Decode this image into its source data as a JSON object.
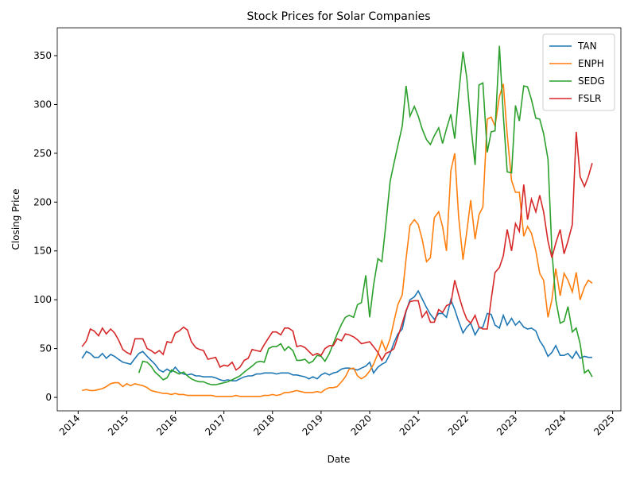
{
  "chart_data": {
    "type": "line",
    "title": "Stock Prices for Solar Companies",
    "x_label": "Date",
    "y_label": "Closing Price",
    "x": [
      2014.08,
      2014.17,
      2014.25,
      2014.33,
      2014.42,
      2014.5,
      2014.58,
      2014.67,
      2014.75,
      2014.83,
      2014.92,
      2015.0,
      2015.08,
      2015.17,
      2015.25,
      2015.33,
      2015.42,
      2015.5,
      2015.58,
      2015.67,
      2015.75,
      2015.83,
      2015.92,
      2016.0,
      2016.08,
      2016.17,
      2016.25,
      2016.33,
      2016.42,
      2016.5,
      2016.58,
      2016.67,
      2016.75,
      2016.83,
      2016.92,
      2017.0,
      2017.08,
      2017.17,
      2017.25,
      2017.33,
      2017.42,
      2017.5,
      2017.58,
      2017.67,
      2017.75,
      2017.83,
      2017.92,
      2018.0,
      2018.08,
      2018.17,
      2018.25,
      2018.33,
      2018.42,
      2018.5,
      2018.58,
      2018.67,
      2018.75,
      2018.83,
      2018.92,
      2019.0,
      2019.08,
      2019.17,
      2019.25,
      2019.33,
      2019.42,
      2019.5,
      2019.58,
      2019.67,
      2019.75,
      2019.83,
      2019.92,
      2020.0,
      2020.08,
      2020.17,
      2020.25,
      2020.33,
      2020.42,
      2020.5,
      2020.58,
      2020.67,
      2020.75,
      2020.83,
      2020.92,
      2021.0,
      2021.08,
      2021.17,
      2021.25,
      2021.33,
      2021.42,
      2021.5,
      2021.58,
      2021.67,
      2021.75,
      2021.83,
      2021.92,
      2022.0,
      2022.08,
      2022.17,
      2022.25,
      2022.33,
      2022.42,
      2022.5,
      2022.58,
      2022.67,
      2022.75,
      2022.83,
      2022.92,
      2023.0,
      2023.08,
      2023.17,
      2023.25,
      2023.33,
      2023.42,
      2023.5,
      2023.58,
      2023.67,
      2023.75,
      2023.83,
      2023.92,
      2024.0,
      2024.08,
      2024.17,
      2024.25,
      2024.33,
      2024.42,
      2024.5,
      2024.58
    ],
    "series": [
      {
        "name": "TAN",
        "color": "#1f77b4",
        "values": [
          40,
          47,
          45,
          41,
          41,
          45,
          40,
          44,
          42,
          39,
          36,
          35,
          34,
          40,
          45,
          47,
          42,
          38,
          34,
          28,
          26,
          29,
          26,
          31,
          26,
          24,
          23,
          24,
          22,
          22,
          21,
          21,
          21,
          20,
          18,
          17,
          18,
          17,
          17,
          19,
          21,
          22,
          22,
          24,
          24,
          25,
          25,
          25,
          24,
          25,
          25,
          25,
          23,
          23,
          22,
          21,
          19,
          21,
          19,
          23,
          25,
          23,
          25,
          26,
          29,
          30,
          30,
          29,
          28,
          30,
          32,
          36,
          25,
          31,
          34,
          36,
          45,
          56,
          65,
          70,
          88,
          100,
          103,
          109,
          101,
          92,
          85,
          80,
          86,
          86,
          82,
          100,
          90,
          78,
          66,
          72,
          76,
          64,
          71,
          72,
          86,
          85,
          74,
          71,
          84,
          74,
          81,
          74,
          78,
          72,
          70,
          71,
          68,
          58,
          52,
          42,
          46,
          53,
          43,
          43,
          45,
          40,
          47,
          40,
          42,
          41,
          41
        ]
      },
      {
        "name": "ENPH",
        "color": "#ff7f0e",
        "values": [
          7,
          8,
          7,
          7,
          8,
          9,
          11,
          14,
          15,
          15,
          11,
          14,
          12,
          14,
          13,
          12,
          10,
          7,
          6,
          5,
          4,
          4,
          3,
          4,
          3,
          3,
          2,
          2,
          2,
          2,
          2,
          2,
          2,
          1,
          1,
          1,
          1,
          1,
          2,
          1,
          1,
          1,
          1,
          1,
          1,
          2,
          2,
          3,
          2,
          3,
          5,
          5,
          6,
          7,
          6,
          5,
          5,
          5,
          6,
          5,
          8,
          10,
          10,
          11,
          16,
          21,
          29,
          30,
          22,
          19,
          22,
          27,
          34,
          45,
          58,
          48,
          60,
          78,
          95,
          105,
          142,
          176,
          182,
          177,
          162,
          139,
          143,
          184,
          190,
          175,
          150,
          232,
          250,
          185,
          141,
          170,
          202,
          162,
          187,
          195,
          285,
          287,
          278,
          308,
          321,
          269,
          222,
          210,
          210,
          165,
          175,
          168,
          150,
          127,
          120,
          82,
          100,
          132,
          104,
          127,
          120,
          108,
          128,
          100,
          113,
          120,
          117
        ]
      },
      {
        "name": "SEDG",
        "color": "#2ca02c",
        "values": [
          null,
          null,
          null,
          null,
          null,
          null,
          null,
          null,
          null,
          null,
          null,
          null,
          null,
          null,
          25,
          37,
          36,
          32,
          26,
          22,
          18,
          20,
          28,
          26,
          24,
          26,
          22,
          19,
          17,
          16,
          16,
          14,
          13,
          13,
          14,
          15,
          16,
          18,
          20,
          22,
          26,
          29,
          32,
          36,
          37,
          36,
          50,
          52,
          52,
          55,
          48,
          52,
          48,
          38,
          38,
          39,
          35,
          37,
          43,
          42,
          37,
          45,
          55,
          65,
          75,
          82,
          84,
          82,
          95,
          97,
          125,
          82,
          115,
          142,
          139,
          176,
          221,
          240,
          258,
          278,
          319,
          288,
          298,
          288,
          275,
          264,
          259,
          268,
          276,
          260,
          275,
          290,
          265,
          310,
          354,
          327,
          280,
          238,
          320,
          322,
          251,
          272,
          273,
          360,
          289,
          231,
          230,
          299,
          283,
          319,
          318,
          305,
          286,
          285,
          270,
          244,
          150,
          100,
          76,
          78,
          93,
          67,
          71,
          55,
          25,
          28,
          21
        ]
      },
      {
        "name": "FSLR",
        "color": "#d62728",
        "values": [
          52,
          58,
          70,
          68,
          63,
          71,
          65,
          70,
          66,
          59,
          49,
          46,
          44,
          60,
          60,
          60,
          50,
          48,
          45,
          48,
          44,
          57,
          56,
          66,
          68,
          72,
          69,
          57,
          51,
          49,
          48,
          39,
          40,
          41,
          31,
          33,
          32,
          36,
          28,
          31,
          38,
          40,
          49,
          48,
          47,
          54,
          61,
          67,
          67,
          64,
          71,
          71,
          68,
          52,
          53,
          51,
          47,
          43,
          45,
          43,
          50,
          53,
          53,
          60,
          58,
          65,
          64,
          62,
          59,
          55,
          56,
          57,
          52,
          46,
          38,
          45,
          47,
          50,
          62,
          76,
          89,
          98,
          99,
          99,
          82,
          88,
          77,
          77,
          90,
          87,
          94,
          96,
          120,
          105,
          90,
          80,
          76,
          84,
          72,
          70,
          70,
          100,
          128,
          133,
          145,
          172,
          150,
          178,
          170,
          218,
          182,
          203,
          190,
          207,
          190,
          160,
          143,
          158,
          172,
          147,
          160,
          177,
          272,
          226,
          216,
          226,
          240
        ]
      }
    ],
    "xlim": [
      2013.57,
      2025.17
    ],
    "xticks": [
      2014,
      2015,
      2016,
      2017,
      2018,
      2019,
      2020,
      2021,
      2022,
      2023,
      2024,
      2025
    ],
    "ylim": [
      -13.8,
      378.5
    ],
    "yticks": [
      0,
      50,
      100,
      150,
      200,
      250,
      300,
      350
    ],
    "legend": "upper right"
  }
}
